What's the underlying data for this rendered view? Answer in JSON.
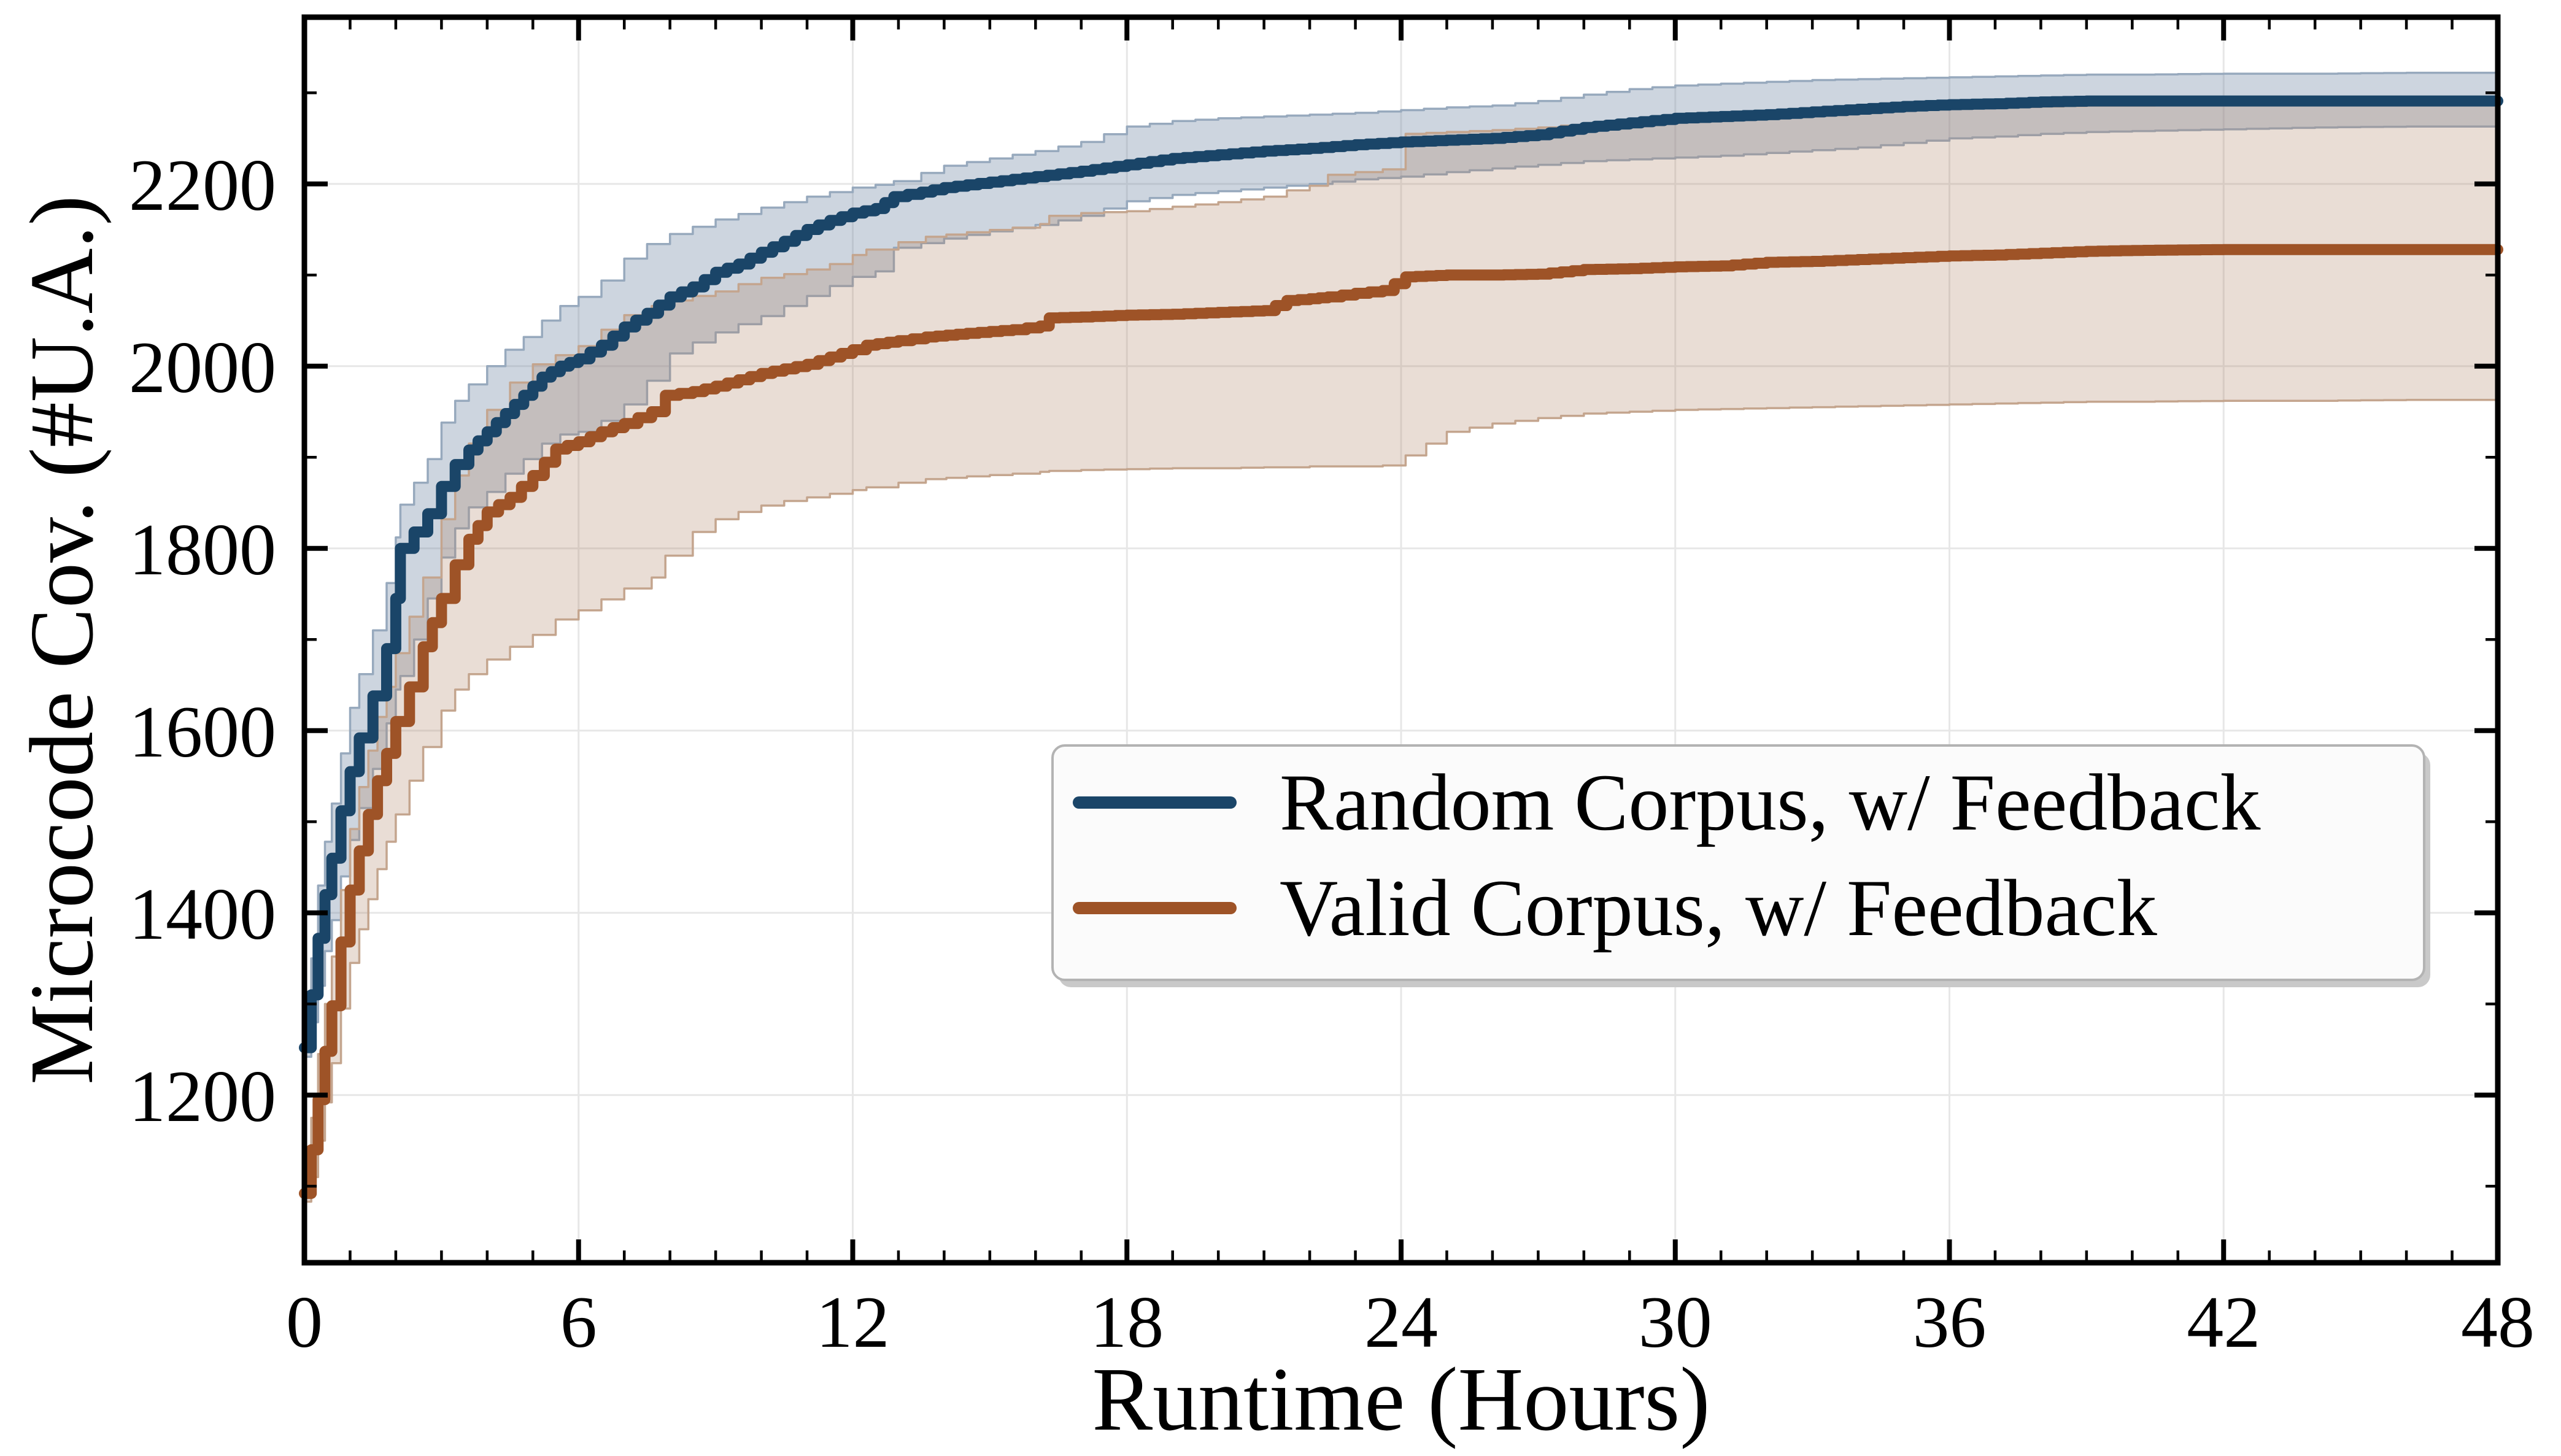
{
  "figure": {
    "background": "#ffffff",
    "spine_color": "#000000",
    "grid_color": "#e7e7e7",
    "text_color": "#000000"
  },
  "chart_data": {
    "type": "line",
    "title": "",
    "xlabel": "Runtime (Hours)",
    "ylabel": "Microcode Cov. (#U.A.)",
    "xlim": [
      0,
      48
    ],
    "ylim": [
      1016,
      2383
    ],
    "x_ticks": [
      0,
      6,
      12,
      18,
      24,
      30,
      36,
      42,
      48
    ],
    "y_ticks": [
      1200,
      1400,
      1600,
      1800,
      2000,
      2200
    ],
    "x_minor_step": 1,
    "y_minor_step": 100,
    "grid": true,
    "legend_position": "center right",
    "series": [
      {
        "name": "Random Corpus, w/  Feedback",
        "line_color": "#1a4568",
        "band_fill": "rgba(102,128,158,0.33)",
        "band_edge": "#97a9bd",
        "points": [
          [
            0,
            1252,
            1242,
            1262
          ],
          [
            0.15,
            1310,
            1280,
            1350
          ],
          [
            0.3,
            1372,
            1320,
            1430
          ],
          [
            0.45,
            1420,
            1358,
            1478
          ],
          [
            0.6,
            1460,
            1392,
            1520
          ],
          [
            0.8,
            1512,
            1440,
            1575
          ],
          [
            1.0,
            1555,
            1480,
            1625
          ],
          [
            1.2,
            1592,
            1515,
            1662
          ],
          [
            1.5,
            1638,
            1558,
            1710
          ],
          [
            1.8,
            1690,
            1608,
            1762
          ],
          [
            2.0,
            1745,
            1645,
            1812
          ],
          [
            2.1,
            1800,
            1660,
            1848
          ],
          [
            2.4,
            1818,
            1700,
            1872
          ],
          [
            2.7,
            1838,
            1745,
            1898
          ],
          [
            3.0,
            1868,
            1790,
            1938
          ],
          [
            3.3,
            1892,
            1822,
            1962
          ],
          [
            3.6,
            1908,
            1845,
            1980
          ],
          [
            4.0,
            1928,
            1862,
            2000
          ],
          [
            4.4,
            1948,
            1882,
            2018
          ],
          [
            4.8,
            1968,
            1898,
            2032
          ],
          [
            5.2,
            1988,
            1915,
            2050
          ],
          [
            5.6,
            2000,
            1925,
            2066
          ],
          [
            6.0,
            2008,
            1928,
            2076
          ],
          [
            6.5,
            2023,
            1940,
            2094
          ],
          [
            7.0,
            2043,
            1958,
            2118
          ],
          [
            7.5,
            2058,
            1984,
            2134
          ],
          [
            8.0,
            2076,
            2014,
            2145
          ],
          [
            8.5,
            2087,
            2026,
            2153
          ],
          [
            9.0,
            2103,
            2037,
            2161
          ],
          [
            9.5,
            2112,
            2046,
            2167
          ],
          [
            10.0,
            2125,
            2055,
            2174
          ],
          [
            10.5,
            2137,
            2066,
            2180
          ],
          [
            11.0,
            2150,
            2077,
            2186
          ],
          [
            11.5,
            2160,
            2088,
            2191
          ],
          [
            12.0,
            2168,
            2098,
            2196
          ],
          [
            12.5,
            2173,
            2104,
            2199
          ],
          [
            12.9,
            2186,
            2130,
            2203
          ],
          [
            13.5,
            2191,
            2135,
            2212
          ],
          [
            14,
            2196,
            2140,
            2220
          ],
          [
            15,
            2202,
            2148,
            2228
          ],
          [
            16,
            2208,
            2155,
            2236
          ],
          [
            17,
            2214,
            2165,
            2246
          ],
          [
            18,
            2221,
            2181,
            2263
          ],
          [
            19,
            2228,
            2188,
            2269
          ],
          [
            20,
            2232,
            2192,
            2272
          ],
          [
            21,
            2236,
            2196,
            2274
          ],
          [
            22,
            2239,
            2200,
            2276
          ],
          [
            23,
            2243,
            2205,
            2278
          ],
          [
            24,
            2246,
            2208,
            2281
          ],
          [
            25,
            2248,
            2213,
            2284
          ],
          [
            26,
            2250,
            2217,
            2286
          ],
          [
            27,
            2254,
            2221,
            2291
          ],
          [
            28,
            2262,
            2225,
            2298
          ],
          [
            29,
            2267,
            2227,
            2304
          ],
          [
            30,
            2272,
            2229,
            2308
          ],
          [
            31,
            2274,
            2231,
            2310
          ],
          [
            32,
            2276,
            2234,
            2312
          ],
          [
            33,
            2279,
            2237,
            2314
          ],
          [
            34,
            2282,
            2240,
            2315
          ],
          [
            35,
            2285,
            2245,
            2316
          ],
          [
            36,
            2287,
            2250,
            2317
          ],
          [
            37,
            2288,
            2252,
            2318
          ],
          [
            38,
            2290,
            2255,
            2319
          ],
          [
            39,
            2291,
            2257,
            2320
          ],
          [
            40,
            2291,
            2258,
            2320
          ],
          [
            42,
            2291,
            2260,
            2321
          ],
          [
            44,
            2291,
            2262,
            2321
          ],
          [
            46,
            2291,
            2263,
            2322
          ],
          [
            48,
            2291,
            2263,
            2322
          ]
        ]
      },
      {
        "name": "Valid Corpus, w/  Feedback",
        "line_color": "#9e5327",
        "band_fill": "rgba(172,130,98,0.27)",
        "band_edge": "#c4a58e",
        "points": [
          [
            0,
            1092,
            1083,
            1101
          ],
          [
            0.15,
            1140,
            1110,
            1175
          ],
          [
            0.3,
            1195,
            1150,
            1245
          ],
          [
            0.45,
            1248,
            1192,
            1300
          ],
          [
            0.6,
            1298,
            1235,
            1352
          ],
          [
            0.8,
            1368,
            1295,
            1425
          ],
          [
            1.0,
            1425,
            1345,
            1492
          ],
          [
            1.2,
            1468,
            1382,
            1538
          ],
          [
            1.4,
            1508,
            1415,
            1578
          ],
          [
            1.6,
            1545,
            1448,
            1615
          ],
          [
            1.8,
            1575,
            1478,
            1648
          ],
          [
            2.0,
            1610,
            1508,
            1685
          ],
          [
            2.3,
            1648,
            1545,
            1725
          ],
          [
            2.6,
            1692,
            1582,
            1768
          ],
          [
            3.0,
            1745,
            1622,
            1832
          ],
          [
            3.3,
            1782,
            1645,
            1880
          ],
          [
            3.6,
            1810,
            1662,
            1915
          ],
          [
            4.0,
            1840,
            1678,
            1952
          ],
          [
            4.5,
            1856,
            1692,
            1982
          ],
          [
            5.0,
            1880,
            1705,
            2002
          ],
          [
            5.5,
            1909,
            1722,
            2012
          ],
          [
            6.0,
            1917,
            1732,
            2022
          ],
          [
            6.5,
            1928,
            1744,
            2040
          ],
          [
            7.0,
            1937,
            1756,
            2056
          ],
          [
            7.6,
            1950,
            1768,
            2066
          ],
          [
            7.9,
            1968,
            1792,
            2072
          ],
          [
            8.5,
            1972,
            1818,
            2077
          ],
          [
            9.0,
            1978,
            1832,
            2082
          ],
          [
            9.5,
            1985,
            1840,
            2090
          ],
          [
            10.0,
            1992,
            1847,
            2097
          ],
          [
            10.5,
            1997,
            1852,
            2101
          ],
          [
            11.0,
            2002,
            1856,
            2106
          ],
          [
            11.5,
            2010,
            1860,
            2112
          ],
          [
            12.0,
            2018,
            1864,
            2122
          ],
          [
            12.3,
            2023,
            1867,
            2128
          ],
          [
            13.0,
            2028,
            1872,
            2136
          ],
          [
            13.6,
            2032,
            1876,
            2142
          ],
          [
            14.5,
            2036,
            1879,
            2147
          ],
          [
            15.5,
            2040,
            1882,
            2152
          ],
          [
            16.1,
            2044,
            1884,
            2156
          ],
          [
            16.3,
            2053,
            1885,
            2165
          ],
          [
            17,
            2054,
            1886,
            2168
          ],
          [
            18,
            2056,
            1887,
            2170
          ],
          [
            19,
            2057,
            1888,
            2175
          ],
          [
            20,
            2059,
            1888,
            2180
          ],
          [
            21,
            2061,
            1889,
            2186
          ],
          [
            21.5,
            2072,
            1889,
            2193
          ],
          [
            22,
            2074,
            1890,
            2198
          ],
          [
            22.4,
            2076,
            1890,
            2210
          ],
          [
            23,
            2080,
            1890,
            2213
          ],
          [
            23.6,
            2083,
            1891,
            2216
          ],
          [
            24.1,
            2098,
            1902,
            2255
          ],
          [
            25,
            2100,
            1928,
            2257
          ],
          [
            26,
            2100,
            1937,
            2259
          ],
          [
            27,
            2101,
            1943,
            2262
          ],
          [
            28,
            2106,
            1948,
            2266
          ],
          [
            29,
            2107,
            1950,
            2269
          ],
          [
            30,
            2109,
            1952,
            2271
          ],
          [
            31,
            2110,
            1953,
            2273
          ],
          [
            32,
            2114,
            1954,
            2275
          ],
          [
            33,
            2115,
            1955,
            2277
          ],
          [
            34,
            2117,
            1956,
            2279
          ],
          [
            35,
            2119,
            1957,
            2281
          ],
          [
            36,
            2121,
            1958,
            2283
          ],
          [
            37,
            2122,
            1959,
            2284
          ],
          [
            38,
            2124,
            1960,
            2285
          ],
          [
            39,
            2126,
            1961,
            2286
          ],
          [
            40,
            2127,
            1961,
            2286
          ],
          [
            42,
            2128,
            1962,
            2287
          ],
          [
            44,
            2128,
            1962,
            2287
          ],
          [
            46,
            2128,
            1963,
            2288
          ],
          [
            48,
            2128,
            1963,
            2288
          ]
        ]
      }
    ]
  },
  "legend": {
    "items": [
      {
        "label": "Random Corpus, w/  Feedback",
        "color": "#1a4568"
      },
      {
        "label": "Valid Corpus, w/  Feedback",
        "color": "#9e5327"
      }
    ],
    "box_fill": "#fbfbfb",
    "box_border": "#b3b3b3",
    "shadow_color": "#c9c9c9"
  }
}
